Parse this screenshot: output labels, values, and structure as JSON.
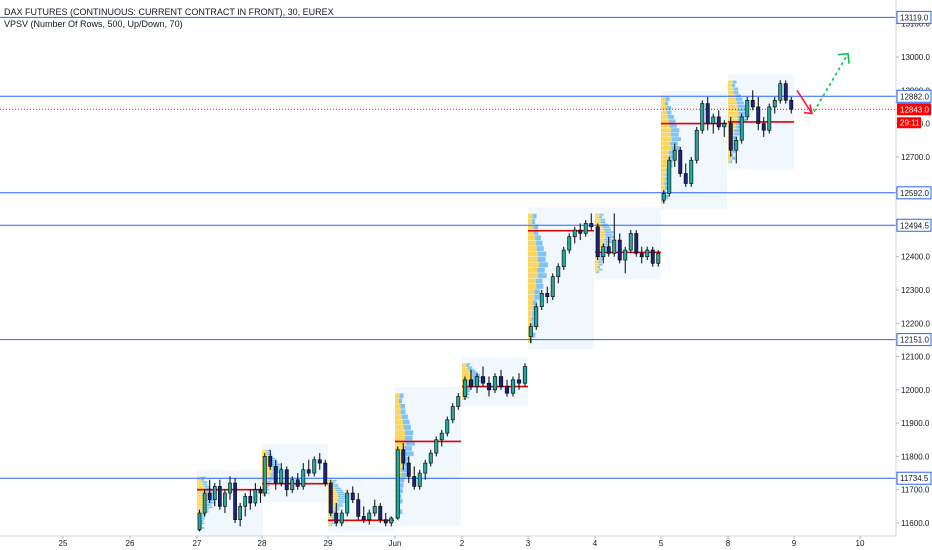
{
  "chart_data": {
    "type": "candlestick",
    "title": "DAX FUTURES (CONTINUOUS: CURRENT CONTRACT IN FRONT), 30, EUREX",
    "indicator": "VPSV (Number Of Rows, 500, Up/Down, 70)",
    "price_range": [
      11575,
      13150
    ],
    "y_ticks": [
      11600,
      11700,
      11800,
      11900,
      12000,
      12100,
      12200,
      12300,
      12400,
      12500,
      12600,
      12700,
      12800,
      12900,
      13000,
      13100
    ],
    "y_tick_labels": [
      "11600.0",
      "11700.0",
      "11800.0",
      "11900.0",
      "12000.0",
      "12100.0",
      "12200.0",
      "12300.0",
      "12400.0",
      "12500.0",
      "12600.0",
      "12700.0",
      "12800.0",
      "12900.0",
      "13000.0",
      "13100.0"
    ],
    "x_ticks": [
      "25",
      "26",
      "27",
      "28",
      "29",
      "Jun",
      "2",
      "3",
      "4",
      "5",
      "8",
      "9",
      "10"
    ],
    "horizontal_levels": [
      {
        "value": 13119.0,
        "label": "13119.0"
      },
      {
        "value": 12882.0,
        "label": "12882.0"
      },
      {
        "value": 12592.0,
        "label": "12592.0"
      },
      {
        "value": 12494.5,
        "label": "12494.5"
      },
      {
        "value": 12151.0,
        "label": "12151.0"
      },
      {
        "value": 11734.5,
        "label": "11734.5"
      }
    ],
    "last_price": {
      "value": 12843.0,
      "label": "12843.0",
      "countdown": "29:11",
      "color": "#ff0000"
    },
    "level_color": "#2962ff",
    "session_poc": [
      {
        "session": "27",
        "poc": 11700
      },
      {
        "session": "28",
        "poc": 11718
      },
      {
        "session": "29",
        "poc": 11608
      },
      {
        "session": "Jun",
        "poc": 11845
      },
      {
        "session": "2",
        "poc": 12010
      },
      {
        "session": "3",
        "poc": 12478
      },
      {
        "session": "4",
        "poc": 12413
      },
      {
        "session": "5",
        "poc": 12800
      },
      {
        "session": "8",
        "poc": 12805
      }
    ],
    "candles": [
      {
        "day": "27",
        "ohlc": [
          [
            11580,
            11640,
            11575,
            11630
          ],
          [
            11630,
            11700,
            11620,
            11690
          ],
          [
            11690,
            11730,
            11660,
            11670
          ],
          [
            11670,
            11720,
            11650,
            11710
          ],
          [
            11710,
            11730,
            11640,
            11650
          ],
          [
            11650,
            11700,
            11630,
            11690
          ],
          [
            11690,
            11740,
            11670,
            11720
          ],
          [
            11720,
            11735,
            11600,
            11610
          ],
          [
            11610,
            11660,
            11590,
            11650
          ],
          [
            11650,
            11690,
            11620,
            11680
          ],
          [
            11680,
            11700,
            11640,
            11660
          ],
          [
            11660,
            11720,
            11650,
            11700
          ],
          [
            11700,
            11710,
            11660,
            11690
          ]
        ]
      },
      {
        "day": "28",
        "ohlc": [
          [
            11690,
            11810,
            11680,
            11800
          ],
          [
            11800,
            11820,
            11760,
            11770
          ],
          [
            11770,
            11790,
            11700,
            11720
          ],
          [
            11720,
            11780,
            11710,
            11760
          ],
          [
            11760,
            11770,
            11680,
            11700
          ],
          [
            11700,
            11740,
            11690,
            11730
          ],
          [
            11730,
            11750,
            11700,
            11710
          ],
          [
            11710,
            11780,
            11700,
            11760
          ],
          [
            11760,
            11790,
            11740,
            11750
          ],
          [
            11750,
            11800,
            11740,
            11790
          ],
          [
            11790,
            11810,
            11760,
            11780
          ],
          [
            11780,
            11790,
            11710,
            11720
          ]
        ]
      },
      {
        "day": "29",
        "ohlc": [
          [
            11720,
            11730,
            11620,
            11630
          ],
          [
            11630,
            11660,
            11590,
            11600
          ],
          [
            11600,
            11640,
            11590,
            11630
          ],
          [
            11630,
            11700,
            11620,
            11690
          ],
          [
            11690,
            11710,
            11660,
            11670
          ],
          [
            11670,
            11690,
            11610,
            11620
          ],
          [
            11620,
            11650,
            11600,
            11610
          ],
          [
            11610,
            11640,
            11595,
            11630
          ],
          [
            11630,
            11670,
            11620,
            11650
          ],
          [
            11650,
            11660,
            11600,
            11610
          ],
          [
            11610,
            11630,
            11590,
            11600
          ],
          [
            11600,
            11620,
            11590,
            11615
          ]
        ]
      },
      {
        "day": "Jun",
        "ohlc": [
          [
            11615,
            11830,
            11610,
            11820
          ],
          [
            11820,
            11840,
            11760,
            11780
          ],
          [
            11780,
            11800,
            11720,
            11740
          ],
          [
            11740,
            11770,
            11700,
            11710
          ],
          [
            11710,
            11760,
            11700,
            11750
          ],
          [
            11750,
            11790,
            11730,
            11780
          ],
          [
            11780,
            11820,
            11770,
            11810
          ],
          [
            11810,
            11860,
            11800,
            11850
          ],
          [
            11850,
            11880,
            11830,
            11870
          ],
          [
            11870,
            11920,
            11860,
            11910
          ],
          [
            11910,
            11960,
            11900,
            11950
          ],
          [
            11950,
            11990,
            11940,
            11980
          ]
        ]
      },
      {
        "day": "2",
        "ohlc": [
          [
            11980,
            12040,
            11970,
            12030
          ],
          [
            12030,
            12060,
            12000,
            12010
          ],
          [
            12010,
            12050,
            11990,
            12040
          ],
          [
            12040,
            12070,
            12010,
            12020
          ],
          [
            12020,
            12040,
            11980,
            12000
          ],
          [
            12000,
            12050,
            11990,
            12040
          ],
          [
            12040,
            12060,
            12000,
            12010
          ],
          [
            12010,
            12030,
            11980,
            11990
          ],
          [
            11990,
            12040,
            11980,
            12030
          ],
          [
            12030,
            12050,
            12000,
            12020
          ],
          [
            12020,
            12080,
            12010,
            12070
          ]
        ]
      },
      {
        "day": "3",
        "ohlc": [
          [
            12160,
            12200,
            12140,
            12190
          ],
          [
            12190,
            12260,
            12180,
            12250
          ],
          [
            12250,
            12300,
            12240,
            12290
          ],
          [
            12290,
            12310,
            12260,
            12280
          ],
          [
            12280,
            12350,
            12270,
            12340
          ],
          [
            12340,
            12380,
            12320,
            12370
          ],
          [
            12370,
            12430,
            12360,
            12420
          ],
          [
            12420,
            12470,
            12410,
            12460
          ],
          [
            12460,
            12490,
            12440,
            12480
          ],
          [
            12480,
            12500,
            12450,
            12470
          ],
          [
            12470,
            12510,
            12460,
            12500
          ],
          [
            12500,
            12530,
            12480,
            12490
          ]
        ]
      },
      {
        "day": "4",
        "ohlc": [
          [
            12490,
            12500,
            12390,
            12400
          ],
          [
            12400,
            12440,
            12380,
            12430
          ],
          [
            12430,
            12460,
            12400,
            12410
          ],
          [
            12410,
            12530,
            12400,
            12450
          ],
          [
            12450,
            12470,
            12380,
            12390
          ],
          [
            12390,
            12430,
            12350,
            12420
          ],
          [
            12420,
            12480,
            12410,
            12470
          ],
          [
            12470,
            12480,
            12400,
            12410
          ],
          [
            12410,
            12430,
            12380,
            12400
          ],
          [
            12400,
            12430,
            12390,
            12420
          ],
          [
            12420,
            12430,
            12370,
            12380
          ],
          [
            12380,
            12420,
            12370,
            12410
          ]
        ]
      },
      {
        "day": "5",
        "ohlc": [
          [
            12570,
            12600,
            12560,
            12590
          ],
          [
            12590,
            12700,
            12580,
            12690
          ],
          [
            12690,
            12740,
            12670,
            12720
          ],
          [
            12720,
            12730,
            12640,
            12650
          ],
          [
            12650,
            12680,
            12610,
            12620
          ],
          [
            12620,
            12700,
            12610,
            12690
          ],
          [
            12690,
            12790,
            12680,
            12780
          ],
          [
            12780,
            12870,
            12770,
            12860
          ],
          [
            12860,
            12880,
            12780,
            12800
          ],
          [
            12800,
            12830,
            12770,
            12820
          ],
          [
            12820,
            12840,
            12780,
            12790
          ],
          [
            12790,
            12810,
            12760,
            12800
          ]
        ]
      },
      {
        "day": "8",
        "ohlc": [
          [
            12800,
            12820,
            12700,
            12720
          ],
          [
            12720,
            12760,
            12680,
            12750
          ],
          [
            12750,
            12830,
            12740,
            12820
          ],
          [
            12820,
            12880,
            12810,
            12870
          ],
          [
            12870,
            12900,
            12840,
            12850
          ],
          [
            12850,
            12880,
            12780,
            12800
          ],
          [
            12800,
            12820,
            12760,
            12780
          ],
          [
            12780,
            12860,
            12770,
            12850
          ],
          [
            12850,
            12880,
            12830,
            12870
          ],
          [
            12870,
            12930,
            12860,
            12920
          ],
          [
            12920,
            12930,
            12860,
            12870
          ],
          [
            12870,
            12880,
            12830,
            12843
          ]
        ]
      }
    ],
    "forecast_arrow_to": 13010,
    "projection_arrow_to": 12830
  }
}
